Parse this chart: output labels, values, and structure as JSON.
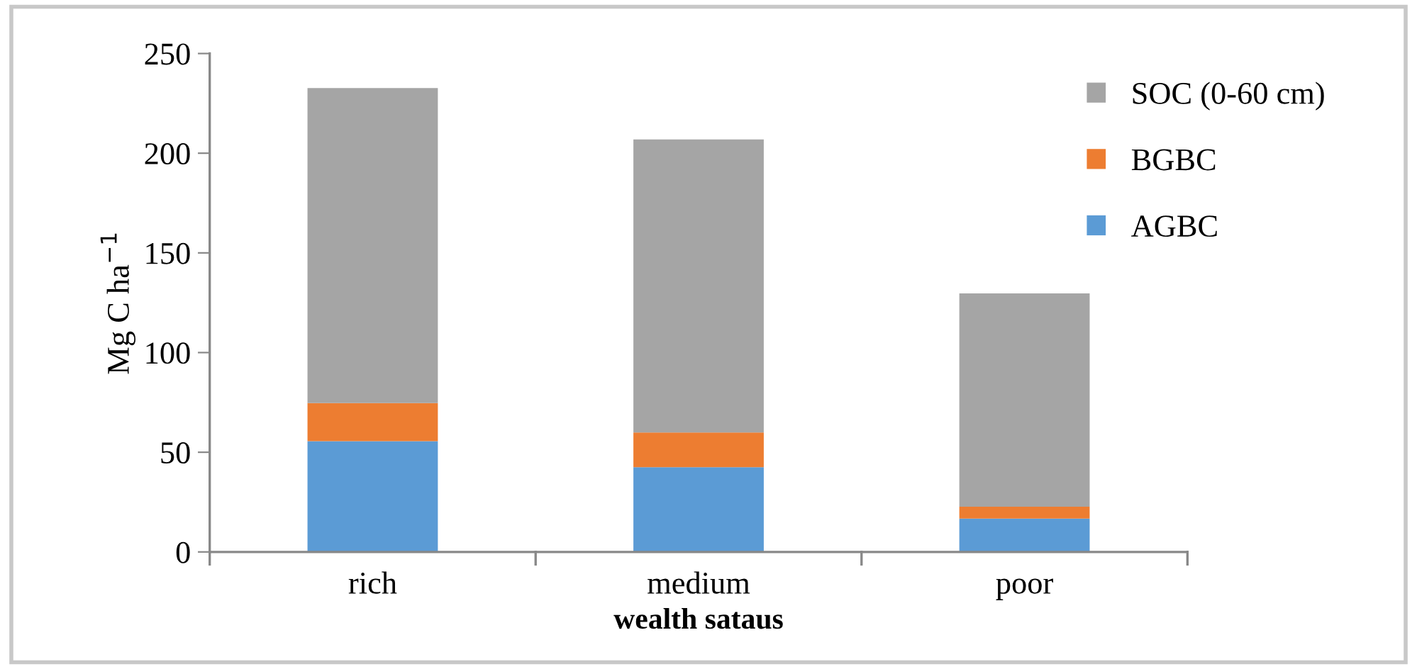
{
  "chart_data": {
    "type": "bar",
    "stacked": true,
    "xlabel": "wealth sataus",
    "ylabel": "Mg C ha$^{−1}$",
    "categories": [
      "rich",
      "medium",
      "poor"
    ],
    "series": [
      {
        "name": "AGBC",
        "color": "#5b9bd5",
        "values": [
          55.6,
          42.5,
          16.7
        ]
      },
      {
        "name": "BGBC",
        "color": "#ed7d31",
        "values": [
          19.1,
          17.4,
          6.0
        ]
      },
      {
        "name": "SOC (0-60 cm)",
        "color": "#a5a5a5",
        "values": [
          158,
          147,
          107
        ]
      }
    ],
    "ylim": [
      0,
      250
    ],
    "yticks": [
      0,
      50,
      100,
      150,
      200,
      250
    ],
    "grid": false,
    "legend": "right"
  }
}
